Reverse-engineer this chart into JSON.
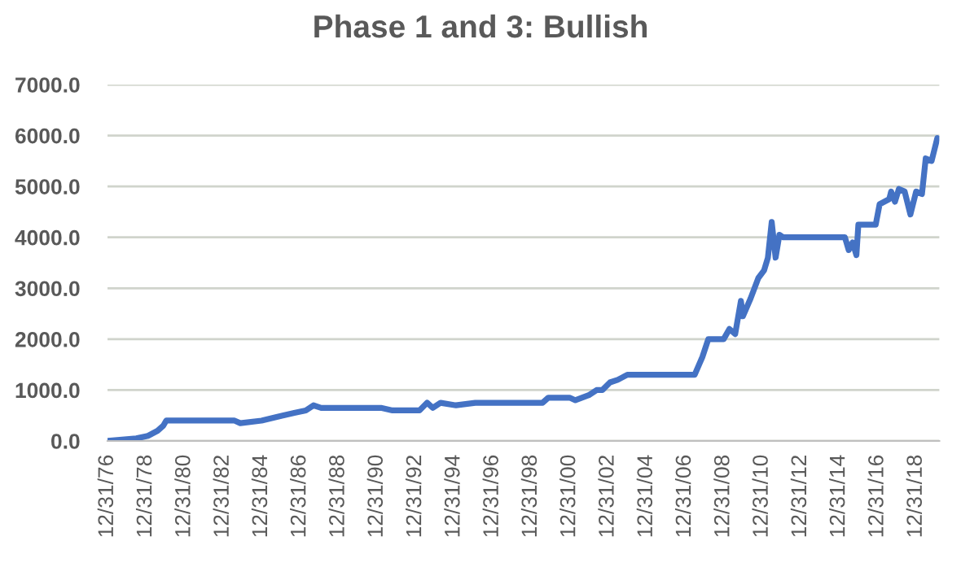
{
  "chart_data": {
    "type": "line",
    "title": "Phase 1 and 3: Bullish",
    "x": [
      "1976-12-31",
      "1978-07-01",
      "1979-02-06",
      "1979-08-07",
      "1979-11-24",
      "1980-01-19",
      "1983-08-07",
      "1983-11-24",
      "1984-12-31",
      "1986-02-06",
      "1986-09-13",
      "1987-04-20",
      "1987-09-13",
      "1988-02-06",
      "1991-03-15",
      "1991-10-20",
      "1993-03-15",
      "1993-08-07",
      "1993-11-24",
      "1994-04-20",
      "1995-02-06",
      "1996-02-06",
      "1999-08-07",
      "1999-11-24",
      "2000-12-31",
      "2001-04-20",
      "2001-12-31",
      "2002-05-27",
      "2002-09-13",
      "2003-02-06",
      "2003-07-01",
      "2003-12-31",
      "2007-07-01",
      "2007-11-24",
      "2008-03-15",
      "2008-12-31",
      "2009-04-20",
      "2009-08-07",
      "2009-11-24",
      "2009-12-31",
      "2010-05-27",
      "2010-10-20",
      "2011-02-06",
      "2011-04-20",
      "2011-07-01",
      "2011-09-13",
      "2011-11-24",
      "2012-02-06",
      "2015-04-20",
      "2015-07-01",
      "2015-09-13",
      "2015-11-24",
      "2015-12-31",
      "2016-11-24",
      "2017-02-06",
      "2017-08-07",
      "2017-09-13",
      "2017-11-24",
      "2018-02-06",
      "2018-05-27",
      "2018-09-13",
      "2018-12-31",
      "2019-04-20",
      "2019-07-01",
      "2019-10-20",
      "2020-02-06"
    ],
    "series": [
      {
        "color": "#4472c4",
        "values": [
          0,
          50,
          100,
          200,
          300,
          400,
          400,
          350,
          400,
          500,
          550,
          600,
          700,
          650,
          650,
          600,
          600,
          750,
          650,
          750,
          700,
          750,
          750,
          850,
          850,
          800,
          900,
          1000,
          1000,
          1150,
          1200,
          1300,
          1300,
          1650,
          2000,
          2000,
          2200,
          2100,
          2750,
          2450,
          2800,
          3200,
          3350,
          3600,
          4300,
          3600,
          4050,
          4000,
          4000,
          3750,
          3900,
          3650,
          4250,
          4250,
          4650,
          4750,
          4900,
          4700,
          4950,
          4900,
          4450,
          4900,
          4850,
          5550,
          5500,
          5950
        ]
      }
    ],
    "xlim": [
      "1976-12-31",
      "2020-03-15"
    ],
    "xticks": [
      {
        "value": "1976-12-31",
        "label": "12/31/76"
      },
      {
        "value": "1978-12-31",
        "label": "12/31/78"
      },
      {
        "value": "1980-12-31",
        "label": "12/31/80"
      },
      {
        "value": "1982-12-31",
        "label": "12/31/82"
      },
      {
        "value": "1984-12-31",
        "label": "12/31/84"
      },
      {
        "value": "1986-12-31",
        "label": "12/31/86"
      },
      {
        "value": "1988-12-31",
        "label": "12/31/88"
      },
      {
        "value": "1990-12-31",
        "label": "12/31/90"
      },
      {
        "value": "1992-12-31",
        "label": "12/31/92"
      },
      {
        "value": "1994-12-31",
        "label": "12/31/94"
      },
      {
        "value": "1996-12-31",
        "label": "12/31/96"
      },
      {
        "value": "1998-12-31",
        "label": "12/31/98"
      },
      {
        "value": "2000-12-31",
        "label": "12/31/00"
      },
      {
        "value": "2002-12-31",
        "label": "12/31/02"
      },
      {
        "value": "2004-12-31",
        "label": "12/31/04"
      },
      {
        "value": "2006-12-31",
        "label": "12/31/06"
      },
      {
        "value": "2008-12-31",
        "label": "12/31/08"
      },
      {
        "value": "2010-12-31",
        "label": "12/31/10"
      },
      {
        "value": "2012-12-31",
        "label": "12/31/12"
      },
      {
        "value": "2014-12-31",
        "label": "12/31/14"
      },
      {
        "value": "2016-12-31",
        "label": "12/31/16"
      },
      {
        "value": "2018-12-31",
        "label": "12/31/18"
      }
    ],
    "ylim": [
      0,
      7000
    ],
    "yticks": [
      {
        "value": 0,
        "label": "0.0"
      },
      {
        "value": 1000,
        "label": "1000.0"
      },
      {
        "value": 2000,
        "label": "2000.0"
      },
      {
        "value": 3000,
        "label": "3000.0"
      },
      {
        "value": 4000,
        "label": "4000.0"
      },
      {
        "value": 5000,
        "label": "5000.0"
      },
      {
        "value": 6000,
        "label": "6000.0"
      },
      {
        "value": 7000,
        "label": "7000.0"
      }
    ],
    "grid": "y",
    "line_style": "solid"
  }
}
